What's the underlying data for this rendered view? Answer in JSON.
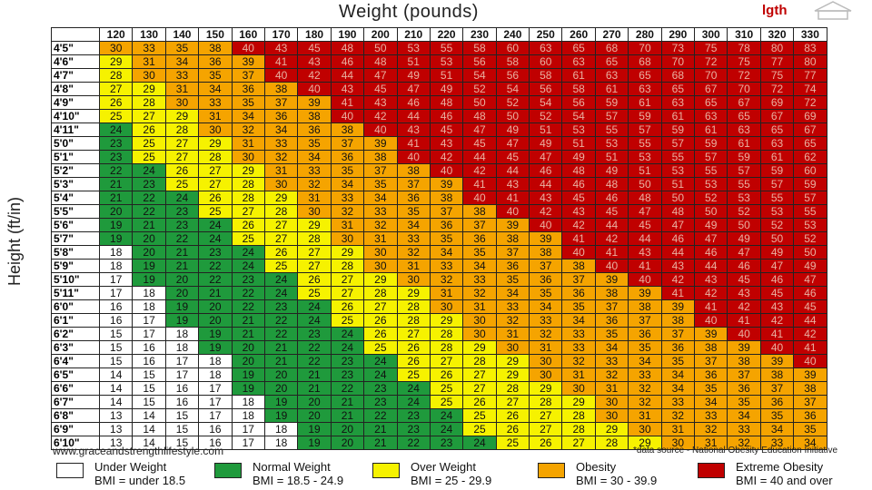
{
  "chart_data": {
    "type": "table",
    "title": "Weight (pounds)",
    "ylabel": "Height (ft/in)",
    "weights": [
      120,
      130,
      140,
      150,
      160,
      170,
      180,
      190,
      200,
      210,
      220,
      230,
      240,
      250,
      260,
      270,
      280,
      290,
      300,
      310,
      320,
      330
    ],
    "heights": [
      "4'5\"",
      "4'6\"",
      "4'7\"",
      "4'8\"",
      "4'9\"",
      "4'10\"",
      "4'11\"",
      "5'0\"",
      "5'1\"",
      "5'2\"",
      "5'3\"",
      "5'4\"",
      "5'5\"",
      "5'6\"",
      "5'7\"",
      "5'8\"",
      "5'9\"",
      "5'10\"",
      "5'11\"",
      "6'0\"",
      "6'1\"",
      "6'2\"",
      "6'3\"",
      "6'4\"",
      "6'5\"",
      "6'6\"",
      "6'7\"",
      "6'8\"",
      "6'9\"",
      "6'10\""
    ],
    "rows": [
      [
        30,
        33,
        35,
        38,
        40,
        43,
        45,
        48,
        50,
        53,
        55,
        58,
        60,
        63,
        65,
        68,
        70,
        73,
        75,
        78,
        80,
        83
      ],
      [
        29,
        31,
        34,
        36,
        39,
        41,
        43,
        46,
        48,
        51,
        53,
        56,
        58,
        60,
        63,
        65,
        68,
        70,
        72,
        75,
        77,
        80
      ],
      [
        28,
        30,
        33,
        35,
        37,
        40,
        42,
        44,
        47,
        49,
        51,
        54,
        56,
        58,
        61,
        63,
        65,
        68,
        70,
        72,
        75,
        77
      ],
      [
        27,
        29,
        31,
        34,
        36,
        38,
        40,
        43,
        45,
        47,
        49,
        52,
        54,
        56,
        58,
        61,
        63,
        65,
        67,
        70,
        72,
        74
      ],
      [
        26,
        28,
        30,
        33,
        35,
        37,
        39,
        41,
        43,
        46,
        48,
        50,
        52,
        54,
        56,
        59,
        61,
        63,
        65,
        67,
        69,
        72
      ],
      [
        25,
        27,
        29,
        31,
        34,
        36,
        38,
        40,
        42,
        44,
        46,
        48,
        50,
        52,
        54,
        57,
        59,
        61,
        63,
        65,
        67,
        69
      ],
      [
        24,
        26,
        28,
        30,
        32,
        34,
        36,
        38,
        40,
        43,
        45,
        47,
        49,
        51,
        53,
        55,
        57,
        59,
        61,
        63,
        65,
        67
      ],
      [
        23,
        25,
        27,
        29,
        31,
        33,
        35,
        37,
        39,
        41,
        43,
        45,
        47,
        49,
        51,
        53,
        55,
        57,
        59,
        61,
        63,
        65
      ],
      [
        23,
        25,
        27,
        28,
        30,
        32,
        34,
        36,
        38,
        40,
        42,
        44,
        45,
        47,
        49,
        51,
        53,
        55,
        57,
        59,
        61,
        62
      ],
      [
        22,
        24,
        26,
        27,
        29,
        31,
        33,
        35,
        37,
        38,
        40,
        42,
        44,
        46,
        48,
        49,
        51,
        53,
        55,
        57,
        59,
        60
      ],
      [
        21,
        23,
        25,
        27,
        28,
        30,
        32,
        34,
        35,
        37,
        39,
        41,
        43,
        44,
        46,
        48,
        50,
        51,
        53,
        55,
        57,
        59
      ],
      [
        21,
        22,
        24,
        26,
        28,
        29,
        31,
        33,
        34,
        36,
        38,
        40,
        41,
        43,
        45,
        46,
        48,
        50,
        52,
        53,
        55,
        57
      ],
      [
        20,
        22,
        23,
        25,
        27,
        28,
        30,
        32,
        33,
        35,
        37,
        38,
        40,
        42,
        43,
        45,
        47,
        48,
        50,
        52,
        53,
        55
      ],
      [
        19,
        21,
        23,
        24,
        26,
        27,
        29,
        31,
        32,
        34,
        36,
        37,
        39,
        40,
        42,
        44,
        45,
        47,
        49,
        50,
        52,
        53
      ],
      [
        19,
        20,
        22,
        24,
        25,
        27,
        28,
        30,
        31,
        33,
        35,
        36,
        38,
        39,
        41,
        42,
        44,
        46,
        47,
        49,
        50,
        52
      ],
      [
        18,
        20,
        21,
        23,
        24,
        26,
        27,
        29,
        30,
        32,
        34,
        35,
        37,
        38,
        40,
        41,
        43,
        44,
        46,
        47,
        49,
        50
      ],
      [
        18,
        19,
        21,
        22,
        24,
        25,
        27,
        28,
        30,
        31,
        33,
        34,
        36,
        37,
        38,
        40,
        41,
        43,
        44,
        46,
        47,
        49
      ],
      [
        17,
        19,
        20,
        22,
        23,
        24,
        26,
        27,
        29,
        30,
        32,
        33,
        35,
        36,
        37,
        39,
        40,
        42,
        43,
        45,
        46,
        47
      ],
      [
        17,
        18,
        20,
        21,
        22,
        24,
        25,
        27,
        28,
        29,
        31,
        32,
        34,
        35,
        36,
        38,
        39,
        41,
        42,
        43,
        45,
        46
      ],
      [
        16,
        18,
        19,
        20,
        22,
        23,
        24,
        26,
        27,
        28,
        30,
        31,
        33,
        34,
        35,
        37,
        38,
        39,
        41,
        42,
        43,
        45
      ],
      [
        16,
        17,
        19,
        20,
        21,
        22,
        24,
        25,
        26,
        28,
        29,
        30,
        32,
        33,
        34,
        36,
        37,
        38,
        40,
        41,
        42,
        44
      ],
      [
        15,
        17,
        18,
        19,
        21,
        22,
        23,
        24,
        26,
        27,
        28,
        30,
        31,
        32,
        33,
        35,
        36,
        37,
        39,
        40,
        41,
        42
      ],
      [
        15,
        16,
        18,
        19,
        20,
        21,
        22,
        24,
        25,
        26,
        28,
        29,
        30,
        31,
        33,
        34,
        35,
        36,
        38,
        39,
        40,
        41
      ],
      [
        15,
        16,
        17,
        18,
        20,
        21,
        22,
        23,
        24,
        26,
        27,
        28,
        29,
        30,
        32,
        33,
        34,
        35,
        37,
        38,
        39,
        40
      ],
      [
        14,
        15,
        17,
        18,
        19,
        20,
        21,
        23,
        24,
        25,
        26,
        27,
        29,
        30,
        31,
        32,
        33,
        34,
        36,
        37,
        38,
        39
      ],
      [
        14,
        15,
        16,
        17,
        19,
        20,
        21,
        22,
        23,
        24,
        25,
        27,
        28,
        29,
        30,
        31,
        32,
        34,
        35,
        36,
        37,
        38
      ],
      [
        14,
        15,
        16,
        17,
        18,
        19,
        20,
        21,
        23,
        24,
        25,
        26,
        27,
        28,
        29,
        30,
        32,
        33,
        34,
        35,
        36,
        37
      ],
      [
        13,
        14,
        15,
        17,
        18,
        19,
        20,
        21,
        22,
        23,
        24,
        25,
        26,
        27,
        28,
        30,
        31,
        32,
        33,
        34,
        35,
        36
      ],
      [
        13,
        14,
        15,
        16,
        17,
        18,
        19,
        20,
        21,
        23,
        24,
        25,
        26,
        27,
        28,
        29,
        30,
        31,
        32,
        33,
        34,
        35
      ],
      [
        13,
        14,
        15,
        16,
        17,
        18,
        19,
        20,
        21,
        22,
        23,
        24,
        25,
        26,
        27,
        28,
        29,
        30,
        31,
        32,
        33,
        34
      ]
    ],
    "categories": [
      {
        "key": "under",
        "name": "Under Weight",
        "range": "BMI = under 18.5",
        "color": "#ffffff",
        "max": 18.5
      },
      {
        "key": "normal",
        "name": "Normal Weight",
        "range": "BMI = 18.5 - 24.9",
        "color": "#1f9a3c",
        "max": 25
      },
      {
        "key": "over",
        "name": "Over Weight",
        "range": "BMI = 25 - 29.9",
        "color": "#f6f200",
        "max": 30
      },
      {
        "key": "obesity",
        "name": "Obesity",
        "range": "BMI = 30 - 39.9",
        "color": "#f5a400",
        "max": 40
      },
      {
        "key": "extreme",
        "name": "Extreme Obesity",
        "range": "BMI = 40 and over",
        "color": "#c00000",
        "max": 999
      }
    ]
  },
  "footer": {
    "website": "www.graceandstrengthlifestyle.com",
    "source": "*data source - National Obesity Education Initiative"
  },
  "logo": {
    "text": "lgth"
  }
}
